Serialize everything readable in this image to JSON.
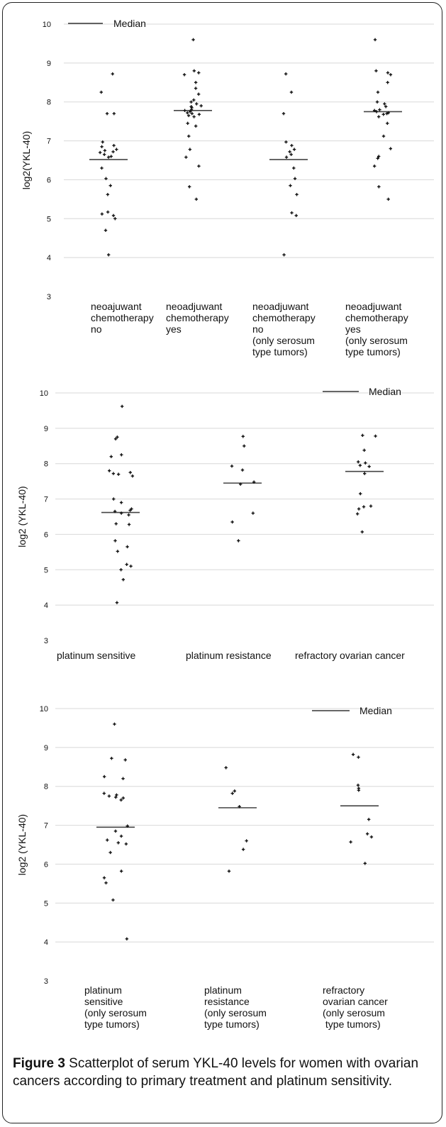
{
  "figure": {
    "caption_label": "Figure 3",
    "caption_text": " Scatterplot of serum YKL-40 levels for women with ovarian cancers according to primary treatment and platinum sensitivity."
  },
  "chart_data": [
    {
      "type": "scatter",
      "ylabel": "log2(YKL-40)",
      "ylim": [
        3,
        10
      ],
      "yticks": [
        "3",
        "4",
        "5",
        "6",
        "7",
        "8",
        "9",
        "10"
      ],
      "grid": true,
      "legend": {
        "label": "Median",
        "placement": "top-left"
      },
      "categories": [
        [
          "neoajuwant",
          "chemotherapy",
          "no"
        ],
        [
          "neoadjuwant",
          "chemotherapy",
          "yes"
        ],
        [
          "neoadjuwant",
          "chemotherapy",
          "no",
          "(only serosum",
          "type tumors)"
        ],
        [
          "neoadjuwant",
          "chemotherapy",
          "yes",
          "(only serosum",
          "type tumors)"
        ]
      ],
      "medians": [
        6.52,
        7.78,
        6.52,
        7.75
      ],
      "series": [
        {
          "values": [
            8.72,
            8.25,
            7.7,
            7.7,
            6.97,
            6.88,
            6.85,
            6.78,
            6.75,
            6.72,
            6.7,
            6.65,
            6.6,
            6.58,
            6.3,
            6.03,
            5.85,
            5.62,
            5.17,
            5.12,
            5.08,
            5.0,
            4.7,
            4.07
          ]
        },
        {
          "values": [
            9.6,
            8.8,
            8.75,
            8.7,
            8.5,
            8.35,
            8.2,
            8.05,
            8.0,
            7.95,
            7.9,
            7.88,
            7.85,
            7.8,
            7.78,
            7.75,
            7.72,
            7.7,
            7.68,
            7.65,
            7.62,
            7.45,
            7.38,
            7.12,
            6.78,
            6.58,
            6.35,
            5.82,
            5.5
          ]
        },
        {
          "values": [
            8.72,
            8.25,
            7.7,
            6.97,
            6.88,
            6.78,
            6.72,
            6.65,
            6.58,
            6.3,
            6.03,
            5.85,
            5.62,
            5.15,
            5.08,
            4.07
          ]
        },
        {
          "values": [
            9.6,
            8.8,
            8.75,
            8.7,
            8.5,
            8.25,
            8.0,
            7.95,
            7.88,
            7.8,
            7.78,
            7.75,
            7.72,
            7.7,
            7.68,
            7.62,
            7.45,
            7.12,
            6.8,
            6.6,
            6.55,
            6.35,
            5.82,
            5.5
          ]
        }
      ]
    },
    {
      "type": "scatter",
      "ylabel": "log2 (YKL-40)",
      "ylim": [
        3,
        10
      ],
      "yticks": [
        "3",
        "4",
        "5",
        "6",
        "7",
        "8",
        "9",
        "10"
      ],
      "grid": true,
      "legend": {
        "label": "Median",
        "placement": "top-right"
      },
      "categories": [
        [
          "platinum sensitive"
        ],
        [
          "platinum resistance"
        ],
        [
          "refractory ovarian cancer"
        ]
      ],
      "medians": [
        6.62,
        7.45,
        7.78
      ],
      "series": [
        {
          "values": [
            9.62,
            8.75,
            8.7,
            8.25,
            8.2,
            7.8,
            7.75,
            7.72,
            7.7,
            7.65,
            7.0,
            6.9,
            6.72,
            6.68,
            6.65,
            6.6,
            6.55,
            6.3,
            6.28,
            5.82,
            5.65,
            5.52,
            5.15,
            5.1,
            5.0,
            4.72,
            4.07
          ]
        },
        {
          "values": [
            8.77,
            8.5,
            7.93,
            7.82,
            7.48,
            7.42,
            6.6,
            6.35,
            5.82
          ]
        },
        {
          "values": [
            8.8,
            8.78,
            8.38,
            8.05,
            8.02,
            7.95,
            7.92,
            7.72,
            7.15,
            6.8,
            6.78,
            6.72,
            6.58,
            6.07
          ]
        }
      ]
    },
    {
      "type": "scatter",
      "ylabel": "log2 (YKL-40)",
      "ylim": [
        3,
        10
      ],
      "yticks": [
        "3",
        "4",
        "5",
        "6",
        "7",
        "8",
        "9",
        "10"
      ],
      "grid": true,
      "legend": {
        "label": "Median",
        "placement": "top-right"
      },
      "categories": [
        [
          "platinum",
          "sensitive",
          "(only serosum",
          "type tumors)"
        ],
        [
          "platinum",
          "resistance",
          "(only serosum",
          "type tumors)"
        ],
        [
          "refractory",
          "ovarian cancer",
          "(only serosum",
          " type tumors)"
        ]
      ],
      "medians": [
        6.95,
        7.45,
        7.5
      ],
      "series": [
        {
          "values": [
            9.6,
            8.72,
            8.68,
            8.25,
            8.2,
            7.82,
            7.78,
            7.75,
            7.72,
            7.7,
            7.65,
            6.98,
            6.85,
            6.72,
            6.62,
            6.55,
            6.52,
            6.3,
            5.82,
            5.65,
            5.52,
            5.08,
            4.08
          ]
        },
        {
          "values": [
            8.48,
            7.88,
            7.82,
            7.48,
            6.6,
            6.38,
            5.82
          ]
        },
        {
          "values": [
            8.82,
            8.75,
            8.03,
            7.95,
            7.9,
            7.15,
            6.78,
            6.7,
            6.57,
            6.02
          ]
        }
      ]
    }
  ]
}
